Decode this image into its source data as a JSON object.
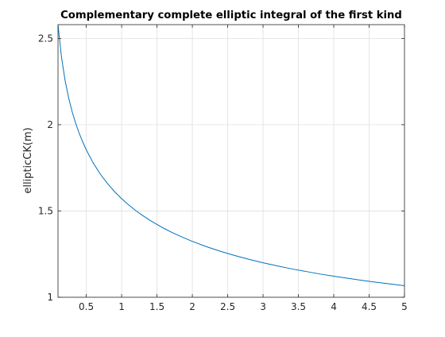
{
  "chart_data": {
    "type": "line",
    "title": "Complementary complete elliptic integral of the first kind",
    "xlabel": "",
    "ylabel": "ellipticCK(m)",
    "xlim": [
      0.1,
      5
    ],
    "ylim": [
      1,
      2.58
    ],
    "grid": true,
    "x_ticks": [
      0.5,
      1,
      1.5,
      2,
      2.5,
      3,
      3.5,
      4,
      4.5,
      5
    ],
    "x_tick_labels": [
      "0.5",
      "1",
      "1.5",
      "2",
      "2.5",
      "3",
      "3.5",
      "4",
      "4.5",
      "5"
    ],
    "y_ticks": [
      1,
      1.5,
      2,
      2.5
    ],
    "y_tick_labels": [
      "1",
      "1.5",
      "2",
      "2.5"
    ],
    "series": [
      {
        "color": "#0072bd",
        "x": [
          0.1,
          0.15,
          0.2,
          0.25,
          0.3,
          0.35,
          0.4,
          0.45,
          0.5,
          0.6,
          0.7,
          0.8,
          0.9,
          1.0,
          1.1,
          1.2,
          1.3,
          1.4,
          1.5,
          1.6,
          1.7,
          1.8,
          1.9,
          2.0,
          2.2,
          2.4,
          2.6,
          2.8,
          3.0,
          3.2,
          3.4,
          3.6,
          3.8,
          4.0,
          4.2,
          4.4,
          4.6,
          4.8,
          5.0
        ],
        "y": [
          2.578,
          2.389,
          2.257,
          2.156,
          2.075,
          2.008,
          1.95,
          1.9,
          1.854,
          1.777,
          1.713,
          1.659,
          1.612,
          1.571,
          1.535,
          1.502,
          1.473,
          1.446,
          1.422,
          1.399,
          1.378,
          1.359,
          1.341,
          1.324,
          1.293,
          1.266,
          1.242,
          1.22,
          1.2,
          1.182,
          1.165,
          1.15,
          1.135,
          1.122,
          1.11,
          1.098,
          1.087,
          1.077,
          1.067
        ]
      }
    ]
  }
}
